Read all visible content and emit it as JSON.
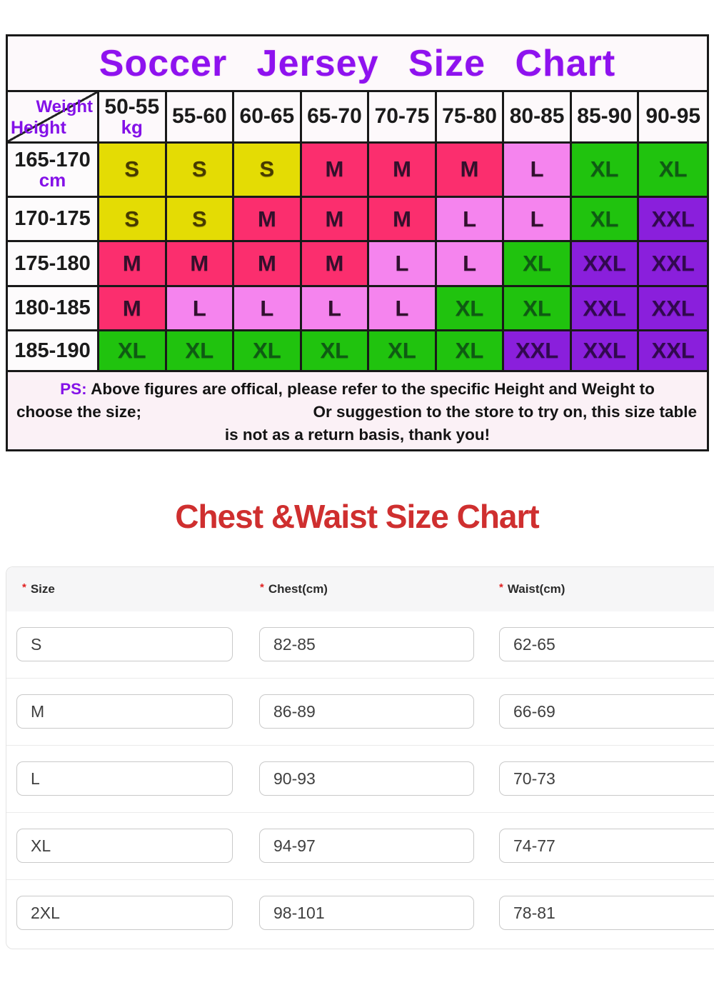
{
  "jersey_chart": {
    "title": "Soccer Jersey Size Chart",
    "title_color": "#8e12ef",
    "corner": {
      "top_label": "Weight",
      "bottom_label": "Height"
    },
    "unit_sub": "kg",
    "weight_columns": [
      "50-55",
      "55-60",
      "60-65",
      "65-70",
      "70-75",
      "75-80",
      "80-85",
      "85-90",
      "90-95"
    ],
    "height_rows": [
      {
        "label": "165-170",
        "sub": "cm",
        "sizes": [
          "S",
          "S",
          "S",
          "M",
          "M",
          "M",
          "L",
          "XL",
          "XL"
        ],
        "colors": [
          "yellow",
          "yellow",
          "yellow",
          "pink",
          "pink",
          "pink",
          "lightpink",
          "green",
          "green"
        ]
      },
      {
        "label": "170-175",
        "sizes": [
          "S",
          "S",
          "M",
          "M",
          "M",
          "L",
          "L",
          "XL",
          "XXL"
        ],
        "colors": [
          "yellow",
          "yellow",
          "pink",
          "pink",
          "pink",
          "lightpink",
          "lightpink",
          "green",
          "purple"
        ]
      },
      {
        "label": "175-180",
        "sizes": [
          "M",
          "M",
          "M",
          "M",
          "L",
          "L",
          "XL",
          "XXL",
          "XXL"
        ],
        "colors": [
          "pink",
          "pink",
          "pink",
          "pink",
          "lightpink",
          "lightpink",
          "green",
          "purple",
          "purple"
        ]
      },
      {
        "label": "180-185",
        "sizes": [
          "M",
          "L",
          "L",
          "L",
          "L",
          "XL",
          "XL",
          "XXL",
          "XXL"
        ],
        "colors": [
          "pink",
          "lightpink",
          "lightpink",
          "lightpink",
          "lightpink",
          "green",
          "green",
          "purple",
          "purple"
        ]
      },
      {
        "label": "185-190",
        "sizes": [
          "XL",
          "XL",
          "XL",
          "XL",
          "XL",
          "XL",
          "XXL",
          "XXL",
          "XXL"
        ],
        "colors": [
          "green",
          "green",
          "green",
          "green",
          "green",
          "green",
          "purple",
          "purple",
          "purple"
        ]
      }
    ],
    "cell_colors": {
      "yellow": {
        "bg": "#e4dc04",
        "text": "#473a00"
      },
      "pink": {
        "bg": "#fb2e6e",
        "text": "#33102c"
      },
      "lightpink": {
        "bg": "#f584ee",
        "text": "#31102e"
      },
      "green": {
        "bg": "#20c30e",
        "text": "#0f5a14"
      },
      "purple": {
        "bg": "#8a1fdc",
        "text": "#31094e"
      }
    },
    "note": {
      "prefix": "PS:",
      "line1": " Above figures are offical, please refer to the specific Height and Weight to",
      "line2_left": "choose the size;",
      "line2_right": "Or suggestion to the store to try on, this size table",
      "line3": "is not as a return basis, thank you!"
    }
  },
  "measure_chart": {
    "title": "Chest &Waist Size Chart",
    "title_color": "#cf2f2f",
    "required_marker": "*",
    "columns": [
      {
        "label": "Size"
      },
      {
        "label": "Chest(cm)"
      },
      {
        "label": "Waist(cm)"
      }
    ],
    "rows": [
      {
        "size": "S",
        "chest": "82-85",
        "waist": "62-65"
      },
      {
        "size": "M",
        "chest": "86-89",
        "waist": "66-69"
      },
      {
        "size": "L",
        "chest": "90-93",
        "waist": "70-73"
      },
      {
        "size": "XL",
        "chest": "94-97",
        "waist": "74-77"
      },
      {
        "size": "2XL",
        "chest": "98-101",
        "waist": "78-81"
      }
    ]
  }
}
